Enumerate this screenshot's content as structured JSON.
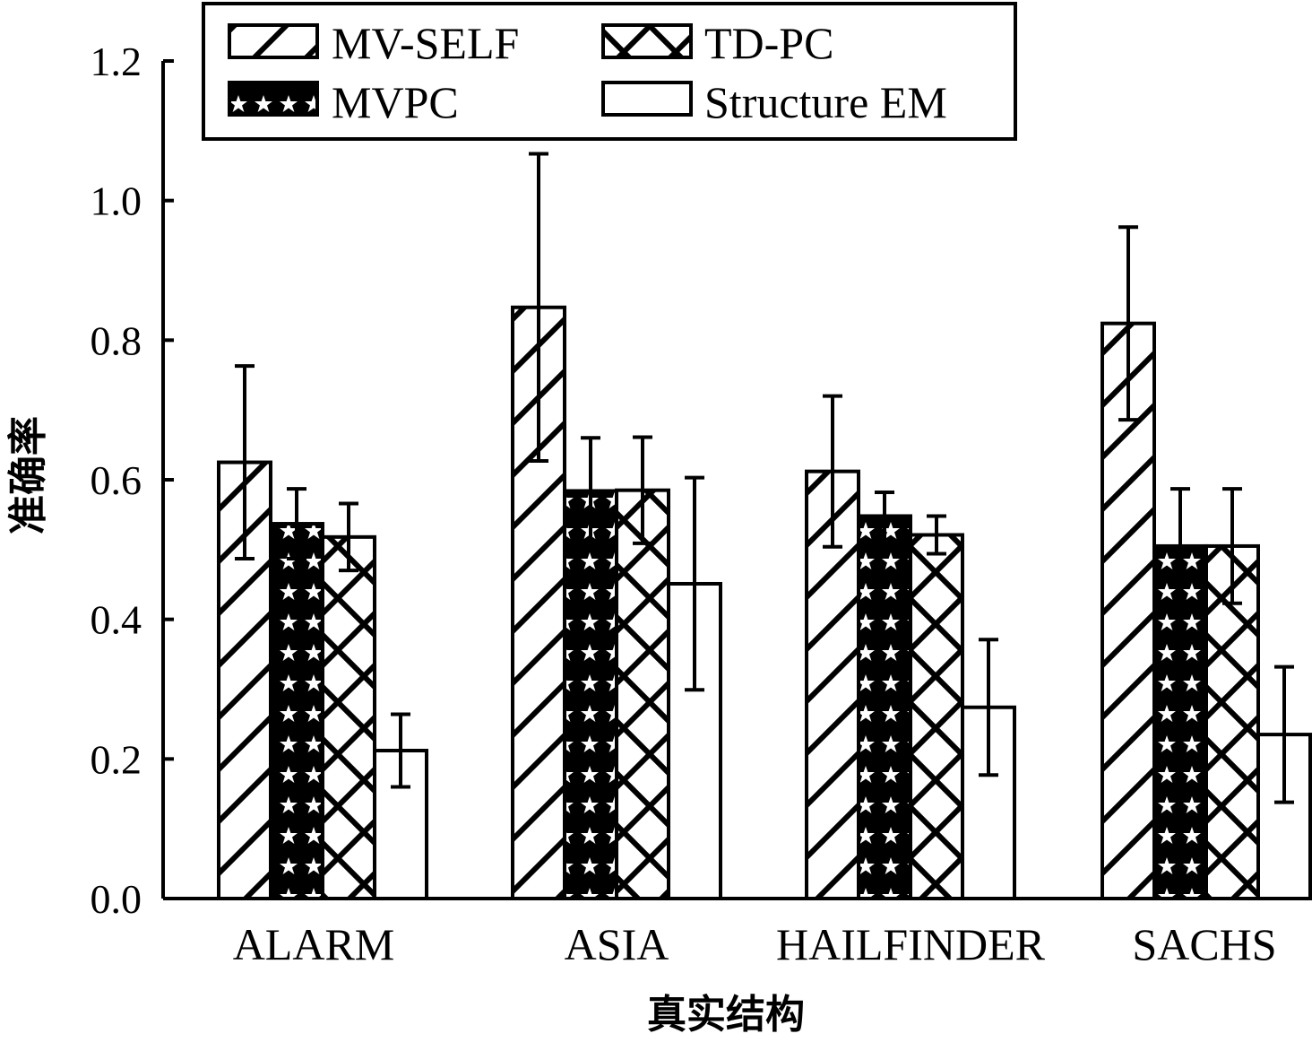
{
  "chart_data": {
    "type": "bar",
    "xlabel": "真实结构",
    "ylabel": "准确率",
    "ylim": [
      0,
      1.2
    ],
    "yticks": [
      "0.0",
      "0.2",
      "0.4",
      "0.6",
      "0.8",
      "1.0",
      "1.2"
    ],
    "categories": [
      "ALARM",
      "ASIA",
      "HAILFINDER",
      "SACHS"
    ],
    "series": [
      {
        "name": "MV-SELF",
        "pattern": "diagonal",
        "values": [
          0.625,
          0.847,
          0.612,
          0.824
        ],
        "errors": [
          0.138,
          0.22,
          0.108,
          0.138
        ]
      },
      {
        "name": "MVPC",
        "pattern": "stars",
        "values": [
          0.537,
          0.584,
          0.548,
          0.505
        ],
        "errors": [
          0.05,
          0.076,
          0.034,
          0.082
        ]
      },
      {
        "name": "TD-PC",
        "pattern": "crosshatch",
        "values": [
          0.518,
          0.585,
          0.521,
          0.505
        ],
        "errors": [
          0.048,
          0.076,
          0.027,
          0.082
        ]
      },
      {
        "name": "Structure EM",
        "pattern": "none",
        "values": [
          0.212,
          0.451,
          0.274,
          0.235
        ],
        "errors": [
          0.052,
          0.152,
          0.097,
          0.097
        ]
      }
    ],
    "legend_position": "top",
    "grid": false
  }
}
